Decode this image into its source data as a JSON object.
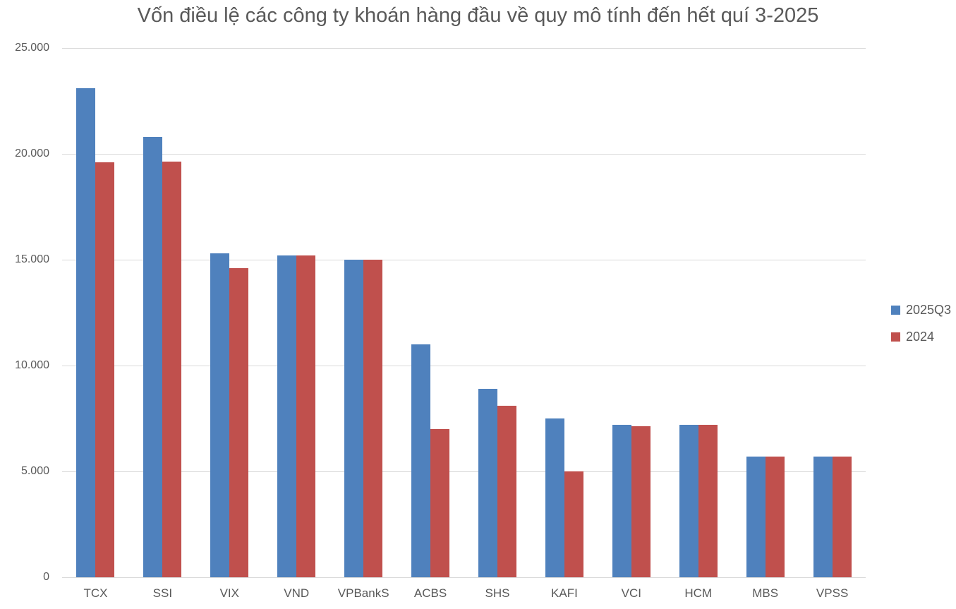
{
  "chart_data": {
    "type": "bar",
    "title": "Vốn điều lệ các công ty khoán hàng đầu về quy mô tính đến hết quí 3-2025",
    "categories": [
      "TCX",
      "SSI",
      "VIX",
      "VND",
      "VPBankS",
      "ACBS",
      "SHS",
      "KAFI",
      "VCI",
      "HCM",
      "MBS",
      "VPSS"
    ],
    "series": [
      {
        "name": "2025Q3",
        "color": "#4F81BD",
        "values": [
          23100,
          20800,
          15300,
          15200,
          15000,
          11000,
          8900,
          7500,
          7200,
          7200,
          5700,
          5700
        ]
      },
      {
        "name": "2024",
        "color": "#C0504D",
        "values": [
          19600,
          19650,
          14600,
          15200,
          15000,
          7000,
          8100,
          5000,
          7150,
          7200,
          5700,
          5700
        ]
      }
    ],
    "xlabel": "",
    "ylabel": "",
    "ylim": [
      0,
      25000
    ],
    "ytick_labels": [
      "25.000",
      "20.000",
      "15.000",
      "10.000",
      "5.000",
      "0"
    ],
    "grid": "horizontal",
    "legend_position": "right",
    "colors": {
      "gridline": "#D9D9D9",
      "axis_text": "#595959",
      "title_text": "#595959"
    }
  }
}
